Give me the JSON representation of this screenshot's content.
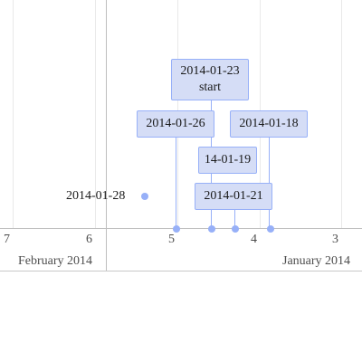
{
  "timeline": {
    "axis": {
      "ticks": [
        "7",
        "6",
        "5",
        "4",
        "3"
      ],
      "months": [
        "February 2014",
        "January 2014"
      ]
    },
    "items": [
      {
        "date": "2014-01-23",
        "content": "start"
      },
      {
        "date": "2014-01-26",
        "content": ""
      },
      {
        "date": "2014-01-18",
        "content": ""
      },
      {
        "date": "14-01-19",
        "content": ""
      },
      {
        "date": "2014-01-21",
        "content": ""
      }
    ],
    "point": {
      "label": "2014-01-28"
    },
    "colors": {
      "item_bg": "#d5ddf6",
      "item_border": "#97b0f8",
      "grid": "#bfbfbf"
    }
  }
}
